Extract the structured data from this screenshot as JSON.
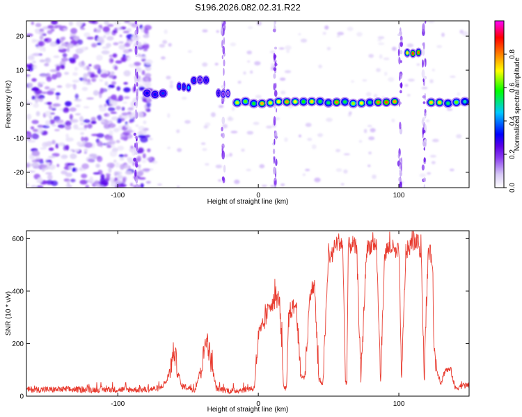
{
  "title": "S196.2026.082.02.31.R22",
  "chart_data": [
    {
      "type": "heatmap",
      "title": "S196.2026.082.02.31.R22",
      "xlabel": "Height of straight line (km)",
      "ylabel": "Frequency (Hz)",
      "xlim": [
        -165,
        150
      ],
      "ylim": [
        -24.5,
        24.5
      ],
      "xticks": [
        -100,
        0,
        100
      ],
      "yticks": [
        -20,
        -10,
        0,
        10,
        20
      ],
      "colorbar": {
        "label": "Normalized spectral amplitude",
        "range": [
          0,
          1
        ],
        "ticks": [
          "0.0",
          "0.2",
          "0.4",
          "0.6",
          "0.8"
        ],
        "colors": [
          "#ffffff",
          "#d6c8f5",
          "#8a3cf0",
          "#5a00e6",
          "#0000ff",
          "#00c8ff",
          "#00ff00",
          "#ffff00",
          "#ff8000",
          "#ff0000",
          "#ff00ff"
        ]
      },
      "noise_region": {
        "x_range": [
          -165,
          -80
        ],
        "level": "0.05-0.35"
      },
      "ridges": [
        {
          "x": [
            -82,
            -65
          ],
          "frequency": 3,
          "amplitude": 0.5
        },
        {
          "x": [
            -58,
            -48
          ],
          "frequency": 5,
          "amplitude": 0.45
        },
        {
          "x": [
            -48,
            -35
          ],
          "frequency": 7,
          "amplitude": 0.35
        },
        {
          "x": [
            -30,
            -20
          ],
          "frequency": 3,
          "amplitude": 0.3
        },
        {
          "x": [
            -18,
            100
          ],
          "frequency": 0.5,
          "amplitude": 0.85
        },
        {
          "x": [
            104,
            116
          ],
          "frequency": 15,
          "amplitude": 0.95
        },
        {
          "x": [
            120,
            150
          ],
          "frequency": 0.5,
          "amplitude": 0.75
        }
      ],
      "vertical_streaks": [
        -87,
        -25,
        12,
        101,
        118
      ]
    },
    {
      "type": "line",
      "xlabel": "Height of straight line (km)",
      "ylabel": "SNR (10 * v/v)",
      "xlim": [
        -165,
        150
      ],
      "ylim": [
        0,
        630
      ],
      "xticks": [
        -100,
        0,
        100
      ],
      "yticks": [
        0,
        200,
        400,
        600
      ],
      "color": "#e83a2e",
      "profile_x": [
        -165,
        -80,
        -70,
        -65,
        -62,
        -60,
        -55,
        -45,
        -40,
        -37,
        -35,
        -30,
        -20,
        -10,
        -5,
        -3,
        0,
        5,
        8,
        15,
        18,
        20,
        22,
        27,
        30,
        33,
        37,
        40,
        43,
        46,
        50,
        52,
        55,
        57,
        60,
        62,
        63,
        64,
        67,
        70,
        73,
        77,
        80,
        84,
        87,
        90,
        95,
        98,
        100,
        102,
        105,
        108,
        111,
        114,
        116,
        118,
        121,
        124,
        125,
        127,
        130,
        133,
        137,
        140,
        145,
        150
      ],
      "profile_y": [
        25,
        25,
        30,
        60,
        120,
        175,
        40,
        25,
        120,
        230,
        170,
        30,
        20,
        25,
        30,
        25,
        220,
        290,
        350,
        375,
        30,
        25,
        320,
        350,
        80,
        70,
        400,
        420,
        60,
        50,
        540,
        530,
        575,
        590,
        580,
        60,
        50,
        570,
        580,
        560,
        60,
        560,
        575,
        580,
        60,
        550,
        570,
        540,
        560,
        60,
        550,
        570,
        590,
        580,
        540,
        60,
        560,
        520,
        180,
        100,
        50,
        100,
        100,
        30,
        40,
        40
      ]
    }
  ]
}
